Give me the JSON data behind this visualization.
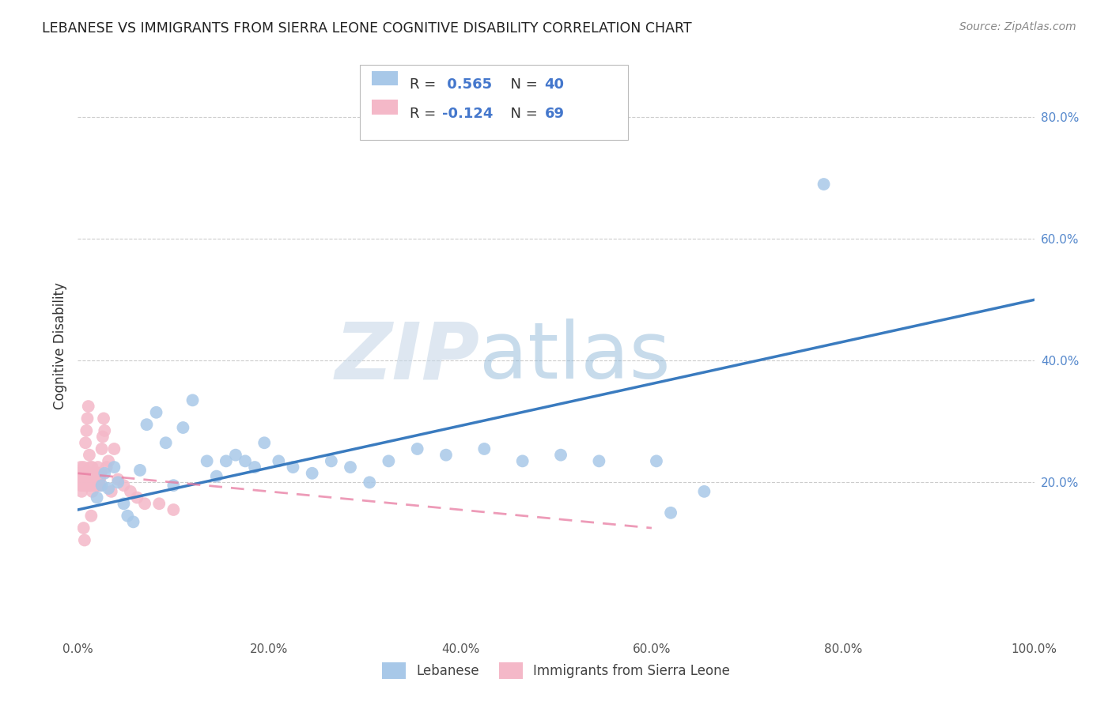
{
  "title": "LEBANESE VS IMMIGRANTS FROM SIERRA LEONE COGNITIVE DISABILITY CORRELATION CHART",
  "source": "Source: ZipAtlas.com",
  "ylabel": "Cognitive Disability",
  "xlim": [
    0,
    1.0
  ],
  "ylim": [
    -0.05,
    0.9
  ],
  "xticks": [
    0.0,
    0.2,
    0.4,
    0.6,
    0.8,
    1.0
  ],
  "xticklabels": [
    "0.0%",
    "20.0%",
    "40.0%",
    "60.0%",
    "80.0%",
    "100.0%"
  ],
  "yticks_right": [
    0.2,
    0.4,
    0.6,
    0.8
  ],
  "yticklabels_right": [
    "20.0%",
    "40.0%",
    "60.0%",
    "80.0%"
  ],
  "grid_lines": [
    0.2,
    0.4,
    0.6,
    0.8
  ],
  "legend_r1_black": "R = ",
  "legend_r1_blue": " 0.565",
  "legend_n1_blue": "  N = 40",
  "legend_r2_black": "R = ",
  "legend_r2_blue": "-0.124",
  "legend_n2_blue": "  N = 69",
  "blue_color": "#a8c8e8",
  "pink_color": "#f4b8c8",
  "blue_line_color": "#3a7bbf",
  "pink_line_color": "#e87aa0",
  "legend_blue_text": "#4477cc",
  "watermark_zip": "ZIP",
  "watermark_atlas": "atlas",
  "blue_scatter_x": [
    0.02,
    0.025,
    0.028,
    0.032,
    0.038,
    0.042,
    0.048,
    0.052,
    0.058,
    0.065,
    0.072,
    0.082,
    0.092,
    0.1,
    0.11,
    0.12,
    0.135,
    0.145,
    0.155,
    0.165,
    0.175,
    0.185,
    0.195,
    0.21,
    0.225,
    0.245,
    0.265,
    0.285,
    0.305,
    0.325,
    0.355,
    0.385,
    0.425,
    0.465,
    0.505,
    0.545,
    0.605,
    0.655,
    0.62,
    0.78
  ],
  "blue_scatter_y": [
    0.175,
    0.195,
    0.215,
    0.19,
    0.225,
    0.2,
    0.165,
    0.145,
    0.135,
    0.22,
    0.295,
    0.315,
    0.265,
    0.195,
    0.29,
    0.335,
    0.235,
    0.21,
    0.235,
    0.245,
    0.235,
    0.225,
    0.265,
    0.235,
    0.225,
    0.215,
    0.235,
    0.225,
    0.2,
    0.235,
    0.255,
    0.245,
    0.255,
    0.235,
    0.245,
    0.235,
    0.235,
    0.185,
    0.15,
    0.69
  ],
  "pink_scatter_x": [
    0.001,
    0.002,
    0.003,
    0.003,
    0.004,
    0.004,
    0.005,
    0.005,
    0.006,
    0.006,
    0.007,
    0.007,
    0.008,
    0.008,
    0.009,
    0.009,
    0.01,
    0.01,
    0.011,
    0.011,
    0.012,
    0.012,
    0.013,
    0.013,
    0.014,
    0.014,
    0.015,
    0.015,
    0.016,
    0.016,
    0.017,
    0.017,
    0.018,
    0.018,
    0.019,
    0.019,
    0.02,
    0.02,
    0.021,
    0.021,
    0.022,
    0.022,
    0.023,
    0.023,
    0.024,
    0.025,
    0.026,
    0.027,
    0.028,
    0.03,
    0.032,
    0.035,
    0.038,
    0.042,
    0.048,
    0.055,
    0.062,
    0.07,
    0.085,
    0.1,
    0.008,
    0.009,
    0.01,
    0.011,
    0.012,
    0.013,
    0.014,
    0.006,
    0.007
  ],
  "pink_scatter_y": [
    0.205,
    0.215,
    0.195,
    0.225,
    0.185,
    0.205,
    0.215,
    0.195,
    0.225,
    0.205,
    0.215,
    0.195,
    0.205,
    0.215,
    0.195,
    0.205,
    0.215,
    0.195,
    0.205,
    0.215,
    0.195,
    0.205,
    0.215,
    0.195,
    0.205,
    0.215,
    0.225,
    0.185,
    0.205,
    0.215,
    0.195,
    0.205,
    0.215,
    0.195,
    0.205,
    0.215,
    0.195,
    0.205,
    0.225,
    0.195,
    0.205,
    0.215,
    0.195,
    0.205,
    0.215,
    0.255,
    0.275,
    0.305,
    0.285,
    0.225,
    0.235,
    0.185,
    0.255,
    0.205,
    0.195,
    0.185,
    0.175,
    0.165,
    0.165,
    0.155,
    0.265,
    0.285,
    0.305,
    0.325,
    0.245,
    0.225,
    0.145,
    0.125,
    0.105
  ],
  "blue_line_x0": 0.0,
  "blue_line_x1": 1.0,
  "blue_line_y0": 0.155,
  "blue_line_y1": 0.5,
  "pink_line_x0": 0.0,
  "pink_line_x1": 0.6,
  "pink_line_y0": 0.215,
  "pink_line_y1": 0.125
}
